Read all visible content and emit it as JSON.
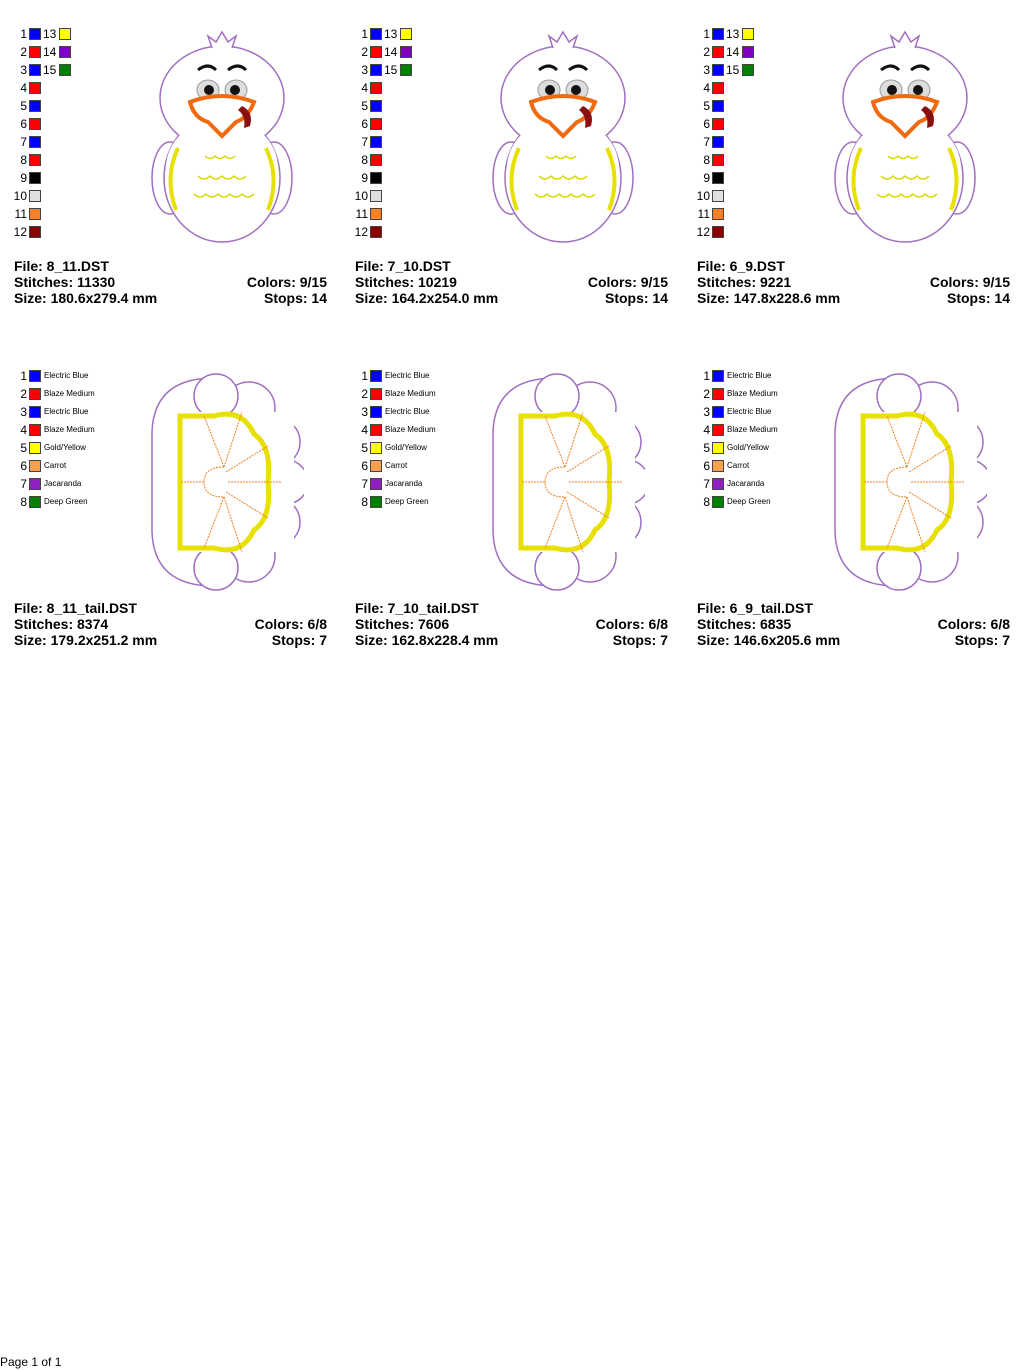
{
  "designs": [
    {
      "file": "File: 8_11.DST",
      "stitches": "Stitches: 11330",
      "size": "Size: 180.6x279.4 mm",
      "colors": "Colors: 9/15",
      "stops": "Stops: 14",
      "kind": "turkey",
      "palette": [
        {
          "number": "1",
          "color": "#0000ff"
        },
        {
          "number": "2",
          "color": "#ff0000"
        },
        {
          "number": "3",
          "color": "#0000ff"
        },
        {
          "number": "4",
          "color": "#ff0000"
        },
        {
          "number": "5",
          "color": "#0000ff"
        },
        {
          "number": "6",
          "color": "#ff0000"
        },
        {
          "number": "7",
          "color": "#0000ff"
        },
        {
          "number": "8",
          "color": "#ff0000"
        },
        {
          "number": "9",
          "color": "#000000"
        },
        {
          "number": "10",
          "color": "#e0e0e0"
        },
        {
          "number": "11",
          "color": "#ff7f27"
        },
        {
          "number": "12",
          "color": "#880000"
        },
        {
          "number": "13",
          "color": "#ffff00"
        },
        {
          "number": "14",
          "color": "#8000c0"
        },
        {
          "number": "15",
          "color": "#008000"
        }
      ]
    },
    {
      "file": "File: 7_10.DST",
      "stitches": "Stitches: 10219",
      "size": "Size: 164.2x254.0 mm",
      "colors": "Colors: 9/15",
      "stops": "Stops: 14",
      "kind": "turkey",
      "palette": [
        {
          "number": "1",
          "color": "#0000ff"
        },
        {
          "number": "2",
          "color": "#ff0000"
        },
        {
          "number": "3",
          "color": "#0000ff"
        },
        {
          "number": "4",
          "color": "#ff0000"
        },
        {
          "number": "5",
          "color": "#0000ff"
        },
        {
          "number": "6",
          "color": "#ff0000"
        },
        {
          "number": "7",
          "color": "#0000ff"
        },
        {
          "number": "8",
          "color": "#ff0000"
        },
        {
          "number": "9",
          "color": "#000000"
        },
        {
          "number": "10",
          "color": "#e0e0e0"
        },
        {
          "number": "11",
          "color": "#ff7f27"
        },
        {
          "number": "12",
          "color": "#880000"
        },
        {
          "number": "13",
          "color": "#ffff00"
        },
        {
          "number": "14",
          "color": "#8000c0"
        },
        {
          "number": "15",
          "color": "#008000"
        }
      ]
    },
    {
      "file": "File: 6_9.DST",
      "stitches": "Stitches: 9221",
      "size": "Size: 147.8x228.6 mm",
      "colors": "Colors: 9/15",
      "stops": "Stops: 14",
      "kind": "turkey",
      "palette": [
        {
          "number": "1",
          "color": "#0000ff"
        },
        {
          "number": "2",
          "color": "#ff0000"
        },
        {
          "number": "3",
          "color": "#0000ff"
        },
        {
          "number": "4",
          "color": "#ff0000"
        },
        {
          "number": "5",
          "color": "#0000ff"
        },
        {
          "number": "6",
          "color": "#ff0000"
        },
        {
          "number": "7",
          "color": "#0000ff"
        },
        {
          "number": "8",
          "color": "#ff0000"
        },
        {
          "number": "9",
          "color": "#000000"
        },
        {
          "number": "10",
          "color": "#e0e0e0"
        },
        {
          "number": "11",
          "color": "#ff7f27"
        },
        {
          "number": "12",
          "color": "#880000"
        },
        {
          "number": "13",
          "color": "#ffff00"
        },
        {
          "number": "14",
          "color": "#8000c0"
        },
        {
          "number": "15",
          "color": "#008000"
        }
      ]
    },
    {
      "file": "File: 8_11_tail.DST",
      "stitches": "Stitches: 8374",
      "size": "Size: 179.2x251.2 mm",
      "colors": "Colors: 6/8",
      "stops": "Stops: 7",
      "kind": "tail",
      "palette": [
        {
          "number": "1",
          "color": "#0000ff",
          "name": "Electric Blue"
        },
        {
          "number": "2",
          "color": "#ff0000",
          "name": "Blaze Medium"
        },
        {
          "number": "3",
          "color": "#0000ff",
          "name": "Electric Blue"
        },
        {
          "number": "4",
          "color": "#ff0000",
          "name": "Blaze Medium"
        },
        {
          "number": "5",
          "color": "#ffff00",
          "name": "Gold/Yellow"
        },
        {
          "number": "6",
          "color": "#f9a050",
          "name": "Carrot"
        },
        {
          "number": "7",
          "color": "#9020c0",
          "name": "Jacaranda"
        },
        {
          "number": "8",
          "color": "#008000",
          "name": "Deep Green"
        }
      ]
    },
    {
      "file": "File: 7_10_tail.DST",
      "stitches": "Stitches: 7606",
      "size": "Size: 162.8x228.4 mm",
      "colors": "Colors: 6/8",
      "stops": "Stops: 7",
      "kind": "tail",
      "palette": [
        {
          "number": "1",
          "color": "#0000ff",
          "name": "Electric Blue"
        },
        {
          "number": "2",
          "color": "#ff0000",
          "name": "Blaze Medium"
        },
        {
          "number": "3",
          "color": "#0000ff",
          "name": "Electric Blue"
        },
        {
          "number": "4",
          "color": "#ff0000",
          "name": "Blaze Medium"
        },
        {
          "number": "5",
          "color": "#ffff00",
          "name": "Gold/Yellow"
        },
        {
          "number": "6",
          "color": "#f9a050",
          "name": "Carrot"
        },
        {
          "number": "7",
          "color": "#9020c0",
          "name": "Jacaranda"
        },
        {
          "number": "8",
          "color": "#008000",
          "name": "Deep Green"
        }
      ]
    },
    {
      "file": "File: 6_9_tail.DST",
      "stitches": "Stitches: 6835",
      "size": "Size: 146.6x205.6 mm",
      "colors": "Colors: 6/8",
      "stops": "Stops: 7",
      "kind": "tail",
      "palette": [
        {
          "number": "1",
          "color": "#0000ff",
          "name": "Electric Blue"
        },
        {
          "number": "2",
          "color": "#ff0000",
          "name": "Blaze Medium"
        },
        {
          "number": "3",
          "color": "#0000ff",
          "name": "Electric Blue"
        },
        {
          "number": "4",
          "color": "#ff0000",
          "name": "Blaze Medium"
        },
        {
          "number": "5",
          "color": "#ffff00",
          "name": "Gold/Yellow"
        },
        {
          "number": "6",
          "color": "#f9a050",
          "name": "Carrot"
        },
        {
          "number": "7",
          "color": "#9020c0",
          "name": "Jacaranda"
        },
        {
          "number": "8",
          "color": "#008000",
          "name": "Deep Green"
        }
      ]
    }
  ],
  "footer": "Page 1 of 1"
}
